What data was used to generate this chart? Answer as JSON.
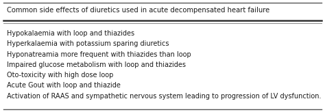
{
  "title": "Common side effects of diuretics used in acute decompensated heart failure",
  "items": [
    "Hypokalaemia with loop and thiazides",
    "Hyperkalaemia with potassium sparing diuretics",
    "Hyponatreamia more frequent with thiazides than loop",
    "Impaired glucose metabolism with loop and thiazides",
    "Oto-toxicity with high dose loop",
    "Acute Gout with loop and thiazide",
    "Activation of RAAS and sympathetic nervous system leading to progression of LV dysfunction."
  ],
  "bg_color": "#ffffff",
  "text_color": "#1a1a1a",
  "title_fontsize": 7.2,
  "body_fontsize": 7.0,
  "border_color": "#555555",
  "thick_line_color": "#333333",
  "thin_line_color": "#888888"
}
